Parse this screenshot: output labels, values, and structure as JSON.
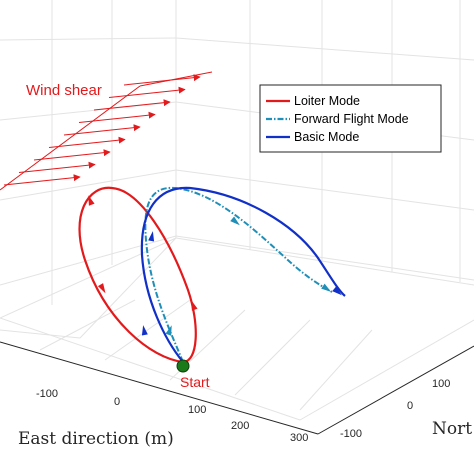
{
  "chart_data": {
    "type": "line",
    "title": "",
    "xlabel": "East direction (m)",
    "ylabel": "Nort",
    "x_ticks": [
      "-100",
      "0",
      "100",
      "200",
      "300"
    ],
    "y_ticks": [
      "100",
      "0",
      "-100"
    ],
    "grid": true,
    "legend_position": "top-right",
    "series": [
      {
        "name": "Loiter Mode",
        "color": "#e31a1c",
        "style": "solid"
      },
      {
        "name": "Forward Flight Mode",
        "color": "#1f8fb8",
        "style": "dash-dot"
      },
      {
        "name": "Basic Mode",
        "color": "#1030c8",
        "style": "solid"
      }
    ],
    "annotations": {
      "wind": "Wind shear",
      "start": "Start"
    },
    "colors": {
      "wind": "#e31a1c",
      "start_marker": "#1a7a1a"
    }
  }
}
